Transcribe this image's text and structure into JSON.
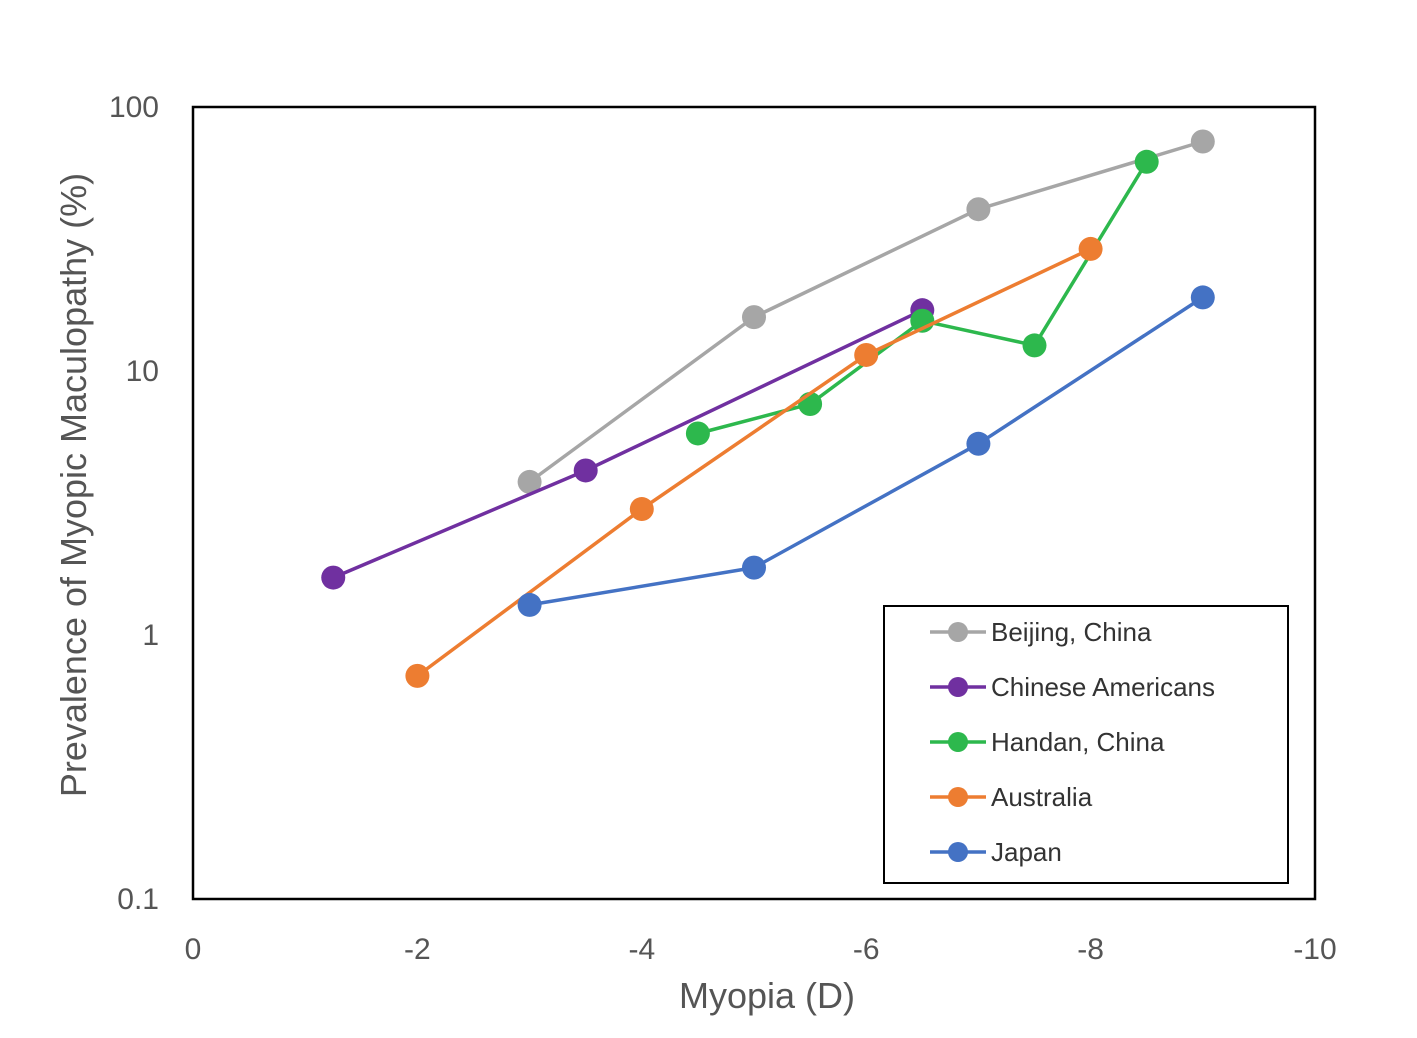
{
  "chart_data": {
    "type": "line",
    "title": "",
    "xlabel": "Myopia (D)",
    "ylabel": "Prevalence of Myopic Maculopathy (%)",
    "xlim": [
      0,
      -10
    ],
    "ylim": [
      0.1,
      100
    ],
    "yscale": "log",
    "x_ticks": [
      "0",
      "-2",
      "-4",
      "-6",
      "-8",
      "-10"
    ],
    "y_ticks": [
      "0.1",
      "1",
      "10",
      "100"
    ],
    "grid": false,
    "legend_position": "bottom-right",
    "series": [
      {
        "name": "Beijing, China",
        "color": "#a6a6a6",
        "x": [
          -3,
          -5,
          -7,
          -9
        ],
        "y": [
          3.8,
          16,
          41,
          74
        ]
      },
      {
        "name": "Chinese Americans",
        "color": "#7030a0",
        "x": [
          -1.25,
          -3.5,
          -6.5
        ],
        "y": [
          1.65,
          4.2,
          17
        ]
      },
      {
        "name": "Handan, China",
        "color": "#2db84d",
        "x": [
          -4.5,
          -5.5,
          -6.5,
          -7.5,
          -8.5
        ],
        "y": [
          5.8,
          7.5,
          15.5,
          12.5,
          62
        ]
      },
      {
        "name": "Australia",
        "color": "#ed7d31",
        "x": [
          -2,
          -4,
          -6,
          -8
        ],
        "y": [
          0.7,
          3.0,
          11.5,
          29
        ]
      },
      {
        "name": "Japan",
        "color": "#4472c4",
        "x": [
          -3,
          -5,
          -7,
          -9
        ],
        "y": [
          1.3,
          1.8,
          5.3,
          19
        ]
      }
    ]
  }
}
